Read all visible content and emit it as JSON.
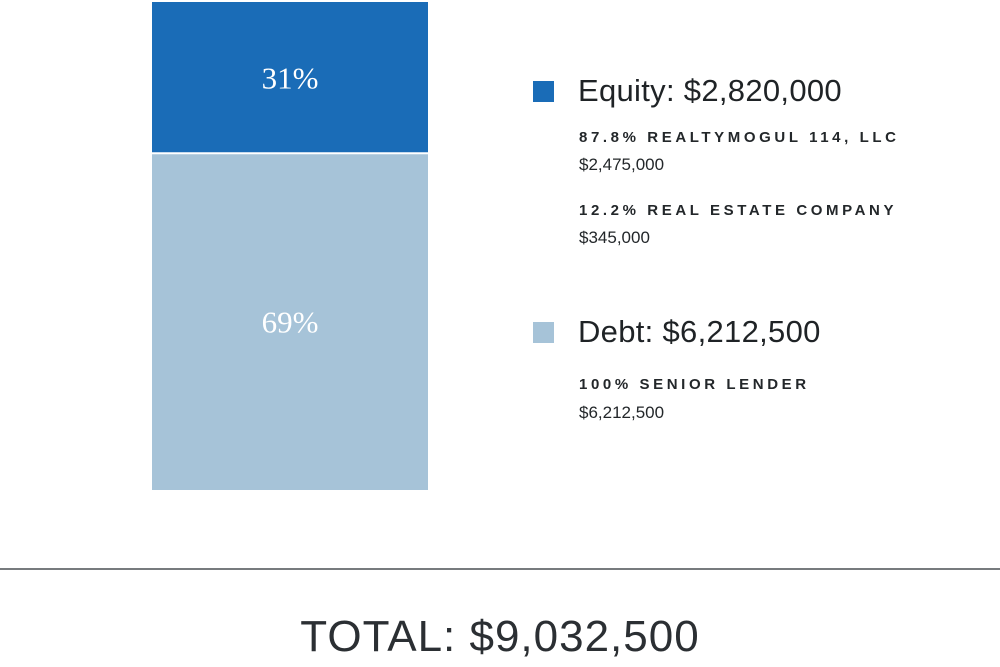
{
  "chart_data": {
    "type": "bar",
    "stacked": true,
    "categories": [
      ""
    ],
    "series": [
      {
        "name": "Equity",
        "values": [
          31
        ],
        "label": "31%",
        "color": "#1a6cb7"
      },
      {
        "name": "Debt",
        "values": [
          69
        ],
        "label": "69%",
        "color": "#a6c3d8"
      }
    ],
    "ylim": [
      0,
      100
    ],
    "grid": false,
    "legend": "right"
  },
  "legend": {
    "equity": {
      "title": "Equity: $2,820,000",
      "color": "#1a6cb7",
      "holders": [
        {
          "name": "87.8% REALTYMOGUL 114, LLC",
          "amount": "$2,475,000"
        },
        {
          "name": "12.2% REAL ESTATE COMPANY",
          "amount": "$345,000"
        }
      ]
    },
    "debt": {
      "title": "Debt: $6,212,500",
      "color": "#a6c3d8",
      "holders": [
        {
          "name": "100% SENIOR LENDER",
          "amount": "$6,212,500"
        }
      ]
    }
  },
  "total": "TOTAL: $9,032,500"
}
